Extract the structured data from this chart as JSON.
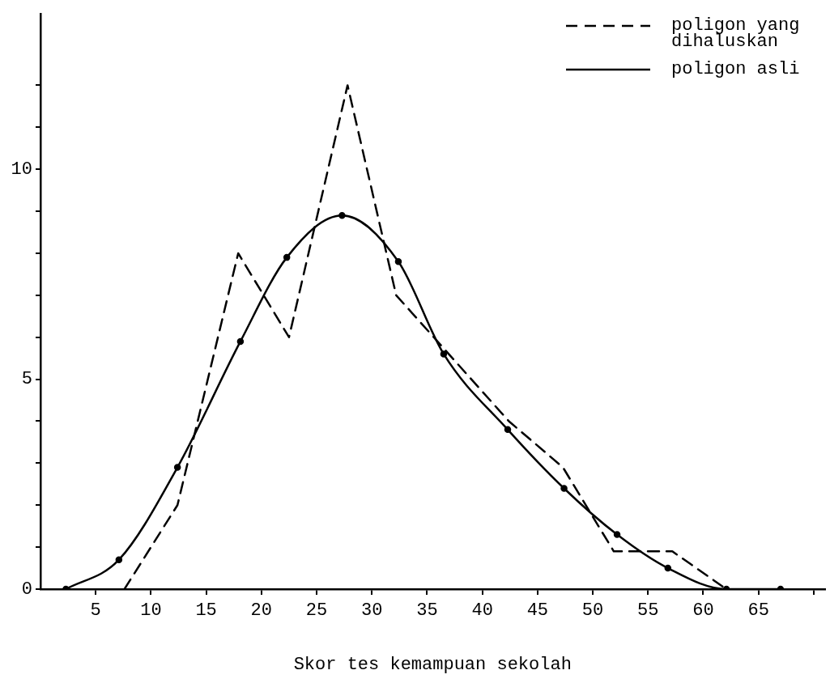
{
  "chart_data": {
    "type": "line",
    "xlabel": "Skor tes kemampuan sekolah",
    "xlim": [
      0,
      71
    ],
    "ylim": [
      0,
      13.7
    ],
    "xticks": [
      5,
      10,
      15,
      20,
      25,
      30,
      35,
      40,
      45,
      50,
      55,
      60,
      65,
      {
        "value": 70,
        "label": null
      }
    ],
    "yticks": [
      0,
      {
        "value": 1,
        "label": null
      },
      {
        "value": 2,
        "label": null
      },
      {
        "value": 3,
        "label": null
      },
      {
        "value": 4,
        "label": null
      },
      5,
      {
        "value": 6,
        "label": null
      },
      {
        "value": 7,
        "label": null
      },
      {
        "value": 8,
        "label": null
      },
      {
        "value": 9,
        "label": null
      },
      10,
      {
        "value": 11,
        "label": null
      },
      {
        "value": 12,
        "label": null
      }
    ],
    "grid": false,
    "legend": "top right",
    "series": [
      {
        "name": "poligon yang dihaluskan",
        "color": "#000000",
        "line_style": "dashed",
        "marker": "none",
        "x": [
          7.6,
          12.4,
          17.9,
          22.5,
          27.8,
          32.2,
          42.4,
          47.3,
          51.9,
          57.2,
          62.1
        ],
        "values": [
          0,
          2,
          8,
          6,
          12,
          7,
          4,
          2.9,
          0.9,
          0.9,
          0
        ]
      },
      {
        "name": "poligon asli",
        "color": "#000000",
        "line_style": "solid",
        "marker": "circle",
        "x": [
          2.3,
          7.1,
          12.4,
          18.1,
          22.3,
          27.3,
          32.4,
          36.5,
          42.3,
          47.4,
          52.2,
          56.8,
          62.1,
          67.0
        ],
        "values": [
          0,
          0.7,
          2.9,
          5.9,
          7.9,
          8.9,
          7.8,
          5.6,
          3.8,
          2.4,
          1.3,
          0.5,
          0,
          0
        ]
      }
    ]
  }
}
